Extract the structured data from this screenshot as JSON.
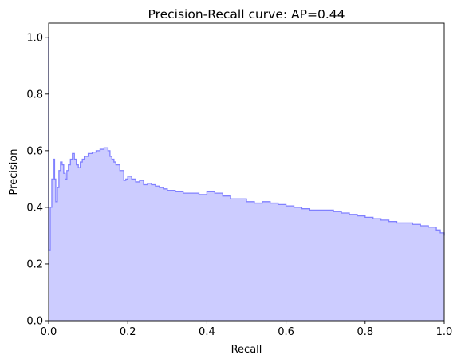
{
  "chart_data": {
    "type": "area",
    "title": "Precision-Recall curve: AP=0.44",
    "xlabel": "Recall",
    "ylabel": "Precision",
    "xlim": [
      0.0,
      1.0
    ],
    "ylim": [
      0.0,
      1.05
    ],
    "xticks": [
      "0.0",
      "0.2",
      "0.4",
      "0.6",
      "0.8",
      "1.0"
    ],
    "yticks": [
      "0.0",
      "0.2",
      "0.4",
      "0.6",
      "0.8",
      "1.0"
    ],
    "grid": false,
    "step": "post",
    "fill_color": "#ccccff",
    "line_color": "#8080ff",
    "series": [
      {
        "x": [
          0.0,
          0.0,
          0.004,
          0.008,
          0.012,
          0.015,
          0.018,
          0.022,
          0.026,
          0.03,
          0.034,
          0.038,
          0.042,
          0.046,
          0.05,
          0.055,
          0.06,
          0.065,
          0.07,
          0.075,
          0.08,
          0.085,
          0.09,
          0.1,
          0.11,
          0.12,
          0.13,
          0.14,
          0.15,
          0.155,
          0.16,
          0.165,
          0.17,
          0.18,
          0.19,
          0.195,
          0.2,
          0.21,
          0.22,
          0.23,
          0.24,
          0.25,
          0.26,
          0.27,
          0.28,
          0.29,
          0.3,
          0.32,
          0.34,
          0.36,
          0.38,
          0.4,
          0.42,
          0.44,
          0.46,
          0.48,
          0.5,
          0.52,
          0.54,
          0.56,
          0.58,
          0.6,
          0.62,
          0.64,
          0.66,
          0.68,
          0.7,
          0.72,
          0.74,
          0.76,
          0.78,
          0.8,
          0.82,
          0.84,
          0.86,
          0.88,
          0.9,
          0.92,
          0.94,
          0.96,
          0.98,
          0.99,
          1.0
        ],
        "y": [
          1.0,
          0.25,
          0.4,
          0.5,
          0.57,
          0.5,
          0.42,
          0.47,
          0.53,
          0.56,
          0.55,
          0.52,
          0.5,
          0.53,
          0.55,
          0.57,
          0.59,
          0.57,
          0.55,
          0.54,
          0.56,
          0.57,
          0.58,
          0.59,
          0.595,
          0.6,
          0.605,
          0.61,
          0.6,
          0.58,
          0.57,
          0.56,
          0.55,
          0.53,
          0.495,
          0.5,
          0.51,
          0.5,
          0.49,
          0.495,
          0.48,
          0.485,
          0.48,
          0.475,
          0.47,
          0.465,
          0.46,
          0.455,
          0.45,
          0.45,
          0.445,
          0.455,
          0.45,
          0.44,
          0.43,
          0.43,
          0.42,
          0.415,
          0.42,
          0.415,
          0.41,
          0.405,
          0.4,
          0.395,
          0.39,
          0.39,
          0.39,
          0.385,
          0.38,
          0.375,
          0.37,
          0.365,
          0.36,
          0.355,
          0.35,
          0.345,
          0.345,
          0.34,
          0.335,
          0.33,
          0.32,
          0.31,
          0.3
        ]
      }
    ]
  }
}
